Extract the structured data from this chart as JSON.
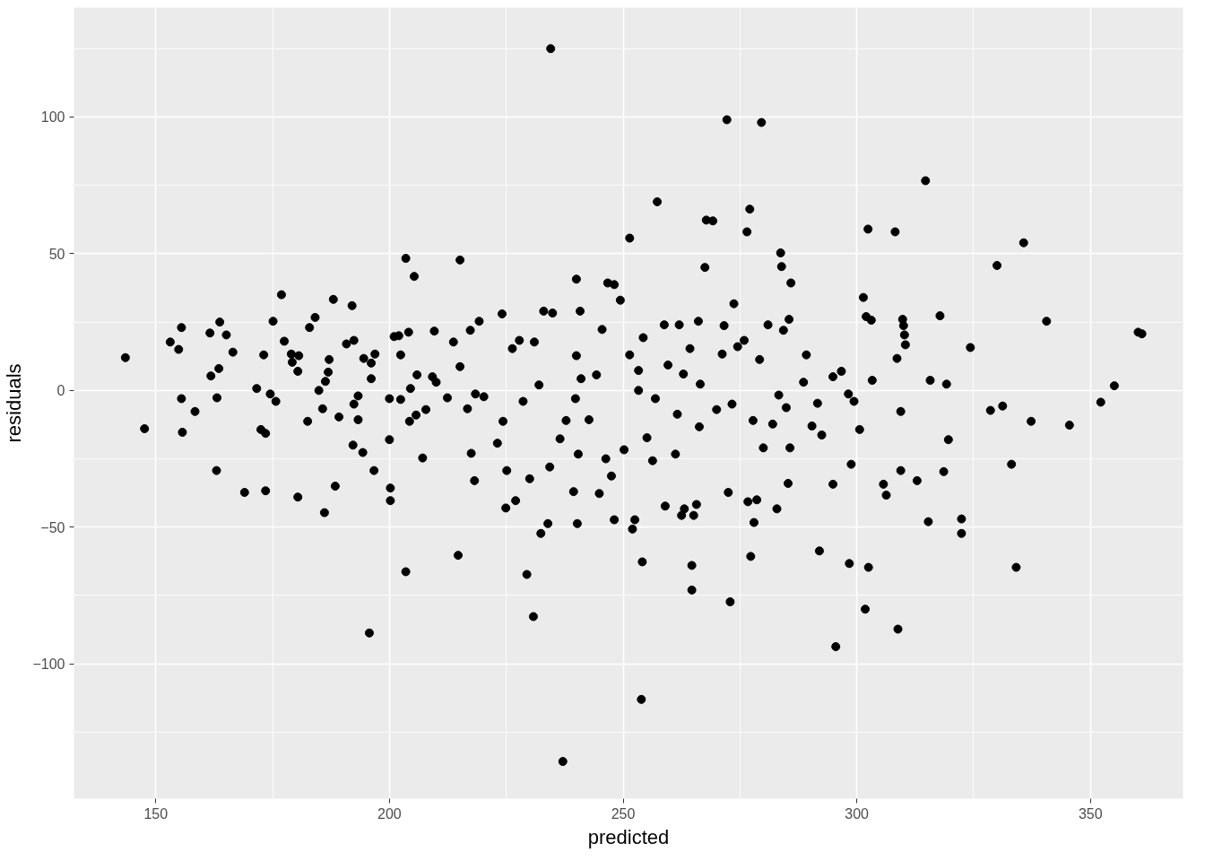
{
  "chart_data": {
    "type": "scatter",
    "xlabel": "predicted",
    "ylabel": "residuals",
    "xlim": [
      132.5,
      369.8
    ],
    "ylim": [
      -149.3,
      140
    ],
    "xticks": [
      150,
      200,
      250,
      300,
      350
    ],
    "yticks": [
      -100,
      -50,
      0,
      50,
      100
    ],
    "grid": true,
    "marker": "circle",
    "series": [
      {
        "color": "#000000",
        "x": [
          143.5,
          147.6,
          153.1,
          154.9,
          155.5,
          155.5,
          155.7,
          158.4,
          161.6,
          161.8,
          163,
          163.1,
          163.5,
          163.7,
          165.1,
          166.5,
          169,
          171.6,
          172.5,
          173.1,
          173.5,
          173.5,
          174.5,
          175.1,
          175.7,
          176.9,
          177.5,
          179,
          179.2,
          180.4,
          180.4,
          180.6,
          182.5,
          182.9,
          184.1,
          184.9,
          185.7,
          186.1,
          186.3,
          186.9,
          187.1,
          188,
          188.4,
          189.2,
          190.8,
          192,
          192.2,
          192.4,
          192.4,
          193.3,
          193.3,
          194.3,
          194.5,
          195.7,
          196.1,
          196.1,
          196.7,
          196.9,
          200,
          200,
          200.2,
          200.2,
          201,
          202,
          202.4,
          202.4,
          203.5,
          203.5,
          204.1,
          204.3,
          204.5,
          205.3,
          205.7,
          205.9,
          207.1,
          207.8,
          209.2,
          209.6,
          210,
          212.4,
          213.7,
          214.7,
          215.1,
          215.1,
          216.7,
          217.3,
          217.5,
          218.2,
          218.4,
          219.2,
          220.2,
          223.1,
          224.1,
          224.3,
          224.9,
          225.1,
          226.3,
          227,
          227.8,
          228.6,
          229.4,
          230,
          230.8,
          231,
          232,
          232.4,
          233,
          233.9,
          234.5,
          234.3,
          234.9,
          236.5,
          237.1,
          237.8,
          239.4,
          239.8,
          240,
          240,
          240.2,
          240.4,
          240.8,
          241,
          242.7,
          244.3,
          244.9,
          245.5,
          246.3,
          246.7,
          247.5,
          248.1,
          248.1,
          249.4,
          250.2,
          251.4,
          251.4,
          252,
          252.5,
          253.3,
          253.3,
          253.9,
          254.1,
          254.3,
          255.1,
          256.3,
          256.9,
          257.3,
          258.8,
          259,
          259.6,
          261.2,
          261.6,
          262,
          262.5,
          262.9,
          263.1,
          264.3,
          264.7,
          264.7,
          265.1,
          265.7,
          266.1,
          266.3,
          266.5,
          267.5,
          267.8,
          269.2,
          270,
          271.2,
          271.6,
          272.2,
          272.5,
          272.9,
          273.3,
          273.7,
          274.5,
          275.9,
          276.5,
          276.7,
          277.1,
          277.3,
          277.8,
          278,
          278.6,
          279.2,
          279.6,
          280,
          281,
          282,
          282.9,
          283.3,
          283.7,
          283.9,
          284.3,
          284.9,
          285.3,
          285.5,
          285.9,
          285.7,
          288.6,
          289.2,
          290.4,
          291.6,
          292,
          292.5,
          294.9,
          294.9,
          295.5,
          296.7,
          298.2,
          298.4,
          298.8,
          299.4,
          300.6,
          301.4,
          301.8,
          302,
          302.4,
          302.5,
          303.1,
          303.3,
          305.7,
          306.3,
          308.2,
          308.6,
          308.8,
          309.4,
          309.4,
          309.8,
          310,
          310.2,
          310.4,
          312.9,
          314.7,
          315.3,
          315.7,
          317.8,
          318.6,
          319.2,
          319.6,
          322.4,
          322.4,
          324.3,
          328.6,
          330,
          331.2,
          333.1,
          334.1,
          335.7,
          337.3,
          340.6,
          345.5,
          352.2,
          355.1,
          360.2,
          361
        ],
        "values": [
          12,
          -14,
          17.7,
          15,
          23,
          -3,
          -15.3,
          -7.7,
          21,
          5.3,
          -29.3,
          -2.7,
          8,
          25,
          20.3,
          14,
          -37.3,
          0.7,
          -14.3,
          13,
          -36.7,
          -15.7,
          -1.3,
          25.3,
          -4,
          35,
          18,
          13.3,
          10.3,
          -39,
          7,
          12.7,
          -11.3,
          23,
          26.7,
          0,
          -6.7,
          -44.7,
          3.3,
          6.7,
          11.3,
          33.3,
          -35,
          -9.7,
          17,
          31,
          -20,
          18.3,
          -5,
          -2,
          -10.7,
          -22.7,
          11.7,
          -88.7,
          10,
          4.3,
          -29.3,
          13.3,
          -3,
          -18,
          -35.7,
          -40.3,
          19.7,
          20,
          13,
          -3.3,
          48.3,
          -66.3,
          21.3,
          -11.3,
          0.7,
          41.7,
          -9,
          5.7,
          -24.7,
          -7,
          5,
          21.7,
          3,
          -2.7,
          17.7,
          -60.3,
          47.7,
          8.7,
          -6.7,
          22,
          -23,
          -33,
          -1.3,
          25.3,
          -2.3,
          -19.3,
          28,
          -11.3,
          -43,
          -29.3,
          15.3,
          -40.3,
          18.3,
          -4,
          -67.3,
          -32.3,
          -82.7,
          17.7,
          2,
          -52.3,
          29,
          -48.7,
          125,
          -28,
          28.3,
          -17.7,
          -135.7,
          -11,
          -37,
          -3,
          40.7,
          12.7,
          -48.7,
          -23.3,
          29,
          4.3,
          -10.7,
          5.7,
          -37.7,
          22.3,
          -25,
          39.3,
          -31.3,
          38.7,
          -47.3,
          33,
          -21.7,
          55.7,
          13,
          -50.7,
          -47.3,
          7.3,
          0,
          -113,
          -62.7,
          19.3,
          -17.3,
          -25.7,
          -3,
          69,
          24,
          -42.3,
          9.3,
          -23.3,
          -8.7,
          24,
          -45.7,
          6,
          -43.3,
          15.3,
          -73,
          -64,
          -45.7,
          -41.7,
          25.3,
          -13.3,
          2.3,
          45,
          62.3,
          62,
          -7,
          13.3,
          23.7,
          99,
          -37.3,
          -77.3,
          -5,
          31.7,
          16,
          18.3,
          58,
          -40.7,
          66.3,
          -60.7,
          -11,
          -48.3,
          -40,
          11.3,
          98,
          -21,
          24,
          -12.3,
          -43.3,
          -1.7,
          50.3,
          45.3,
          22,
          -6.3,
          -34,
          26,
          39.3,
          -21,
          3,
          13,
          -13,
          -4.7,
          -58.7,
          -16.3,
          -34.3,
          5,
          -93.7,
          7,
          -1.3,
          -63.3,
          -27,
          -4,
          -14.3,
          34,
          -80,
          27,
          59,
          -64.7,
          25.7,
          3.7,
          -34.3,
          -38.3,
          58,
          11.7,
          -87.3,
          -29.3,
          -7.7,
          26,
          23.7,
          20.3,
          16.7,
          -33,
          76.7,
          -48,
          3.7,
          27.3,
          -29.7,
          2.3,
          -18,
          -47,
          -52.3,
          15.7,
          -7.3,
          45.7,
          -5.7,
          -27,
          -64.7,
          54,
          -11.3,
          25.3,
          -12.7,
          -4.3,
          1.7,
          21.3,
          20.7
        ]
      }
    ]
  }
}
